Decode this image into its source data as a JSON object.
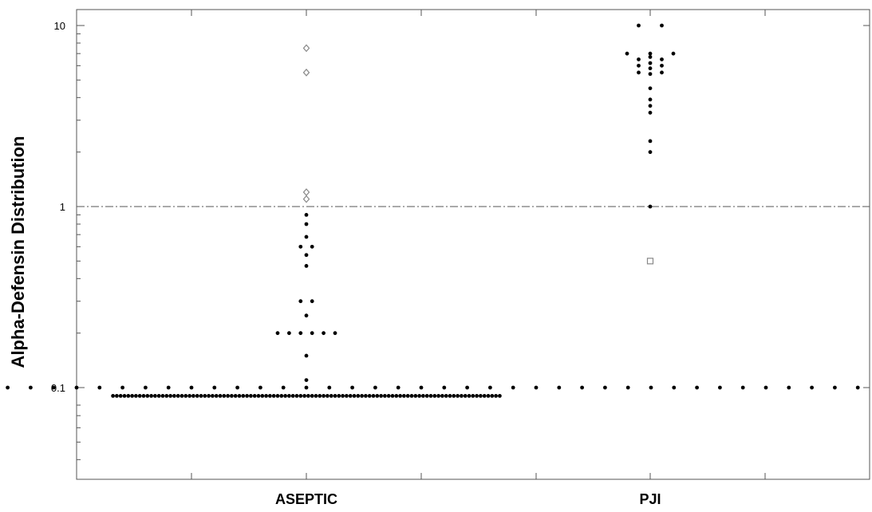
{
  "chart_data": {
    "type": "scatter",
    "subtype": "dot-plot",
    "ylabel": "Alpha-Defensin Distribution",
    "xlabel": "",
    "title": "",
    "y_scale": "log",
    "ylim": [
      0.03,
      11
    ],
    "y_ticks": [
      {
        "value": 0.1,
        "label": "0.1"
      },
      {
        "value": 1,
        "label": "1"
      },
      {
        "value": 10,
        "label": "10"
      }
    ],
    "reference_line": {
      "value": 1,
      "style": "dash-dot"
    },
    "categories": [
      "ASEPTIC",
      "PJI"
    ],
    "series": [
      {
        "category": "ASEPTIC",
        "marker": "filled-dot",
        "values": [
          0.6,
          0.6,
          0.3,
          0.3,
          0.2,
          0.2,
          0.2,
          0.2,
          0.2,
          0.9,
          0.8,
          0.68,
          0.54,
          0.47,
          0.25,
          0.2,
          0.15,
          0.11,
          0.1,
          0.1,
          0.1,
          0.1,
          0.1,
          0.1,
          0.1,
          0.1,
          0.1,
          0.1,
          0.1,
          0.1,
          0.1,
          0.1,
          0.1,
          0.1,
          0.1,
          0.1,
          0.1,
          0.1,
          0.1,
          0.1,
          0.1,
          0.1,
          0.1,
          0.1,
          0.1,
          0.1,
          0.1,
          0.1,
          0.1,
          0.1,
          0.1,
          0.1,
          0.1,
          0.1,
          0.1,
          0.1,
          0.1,
          0.1,
          0.1,
          0.1,
          0.1,
          0.1,
          0.1,
          0.1,
          0.1,
          0.1,
          0.1,
          0.1,
          0.1,
          0.1,
          0.1,
          0.1,
          0.1,
          0.1,
          0.1,
          0.1,
          0.1,
          0.1,
          0.1,
          0.1,
          0.1,
          0.1,
          0.1,
          0.1,
          0.1,
          0.1,
          0.1,
          0.1,
          0.1,
          0.1,
          0.1,
          0.1,
          0.1,
          0.1,
          0.1,
          0.1,
          0.1,
          0.1,
          0.1,
          0.1,
          0.1,
          0.1,
          0.1,
          0.1,
          0.1,
          0.1,
          0.1,
          0.1,
          0.1,
          0.09,
          0.09,
          0.09,
          0.09,
          0.09,
          0.09,
          0.09,
          0.09,
          0.09,
          0.09,
          0.09,
          0.09,
          0.09,
          0.09,
          0.09,
          0.09,
          0.09,
          0.09,
          0.09,
          0.09,
          0.09,
          0.09,
          0.09,
          0.09,
          0.09,
          0.09,
          0.09,
          0.09,
          0.09,
          0.09,
          0.09,
          0.09,
          0.09,
          0.09,
          0.09,
          0.09,
          0.09,
          0.09,
          0.09,
          0.09,
          0.09,
          0.09,
          0.09,
          0.09,
          0.09,
          0.09,
          0.09,
          0.09,
          0.09,
          0.09,
          0.09,
          0.09,
          0.09,
          0.09,
          0.09,
          0.09,
          0.09,
          0.09,
          0.09,
          0.09,
          0.09,
          0.09,
          0.09,
          0.09,
          0.09,
          0.09,
          0.09,
          0.09,
          0.09,
          0.09,
          0.09,
          0.09,
          0.09,
          0.09,
          0.09,
          0.09,
          0.09,
          0.09,
          0.09,
          0.09,
          0.09,
          0.09,
          0.09,
          0.09,
          0.09,
          0.09,
          0.09,
          0.09,
          0.09,
          0.09,
          0.09,
          0.09,
          0.09,
          0.09,
          0.09,
          0.09,
          0.09,
          0.09,
          0.09,
          0.09,
          0.09,
          0.09
        ]
      },
      {
        "category": "ASEPTIC",
        "marker": "open-diamond",
        "values": [
          7.5,
          5.5,
          1.2,
          1.1
        ]
      },
      {
        "category": "PJI",
        "marker": "filled-dot",
        "values": [
          10,
          10,
          7,
          7,
          6.5,
          6.5,
          6,
          6,
          5.5,
          5.5,
          7,
          6.7,
          6.2,
          5.8,
          5.4,
          4.5,
          3.9,
          3.6,
          3.3,
          2.3,
          2.0,
          1.0
        ]
      },
      {
        "category": "PJI",
        "marker": "open-square",
        "values": [
          0.5
        ]
      }
    ]
  },
  "colors": {
    "dot": "#000000",
    "open_marker": "#888888",
    "axis": "#555555",
    "reference_line": "#555555"
  }
}
